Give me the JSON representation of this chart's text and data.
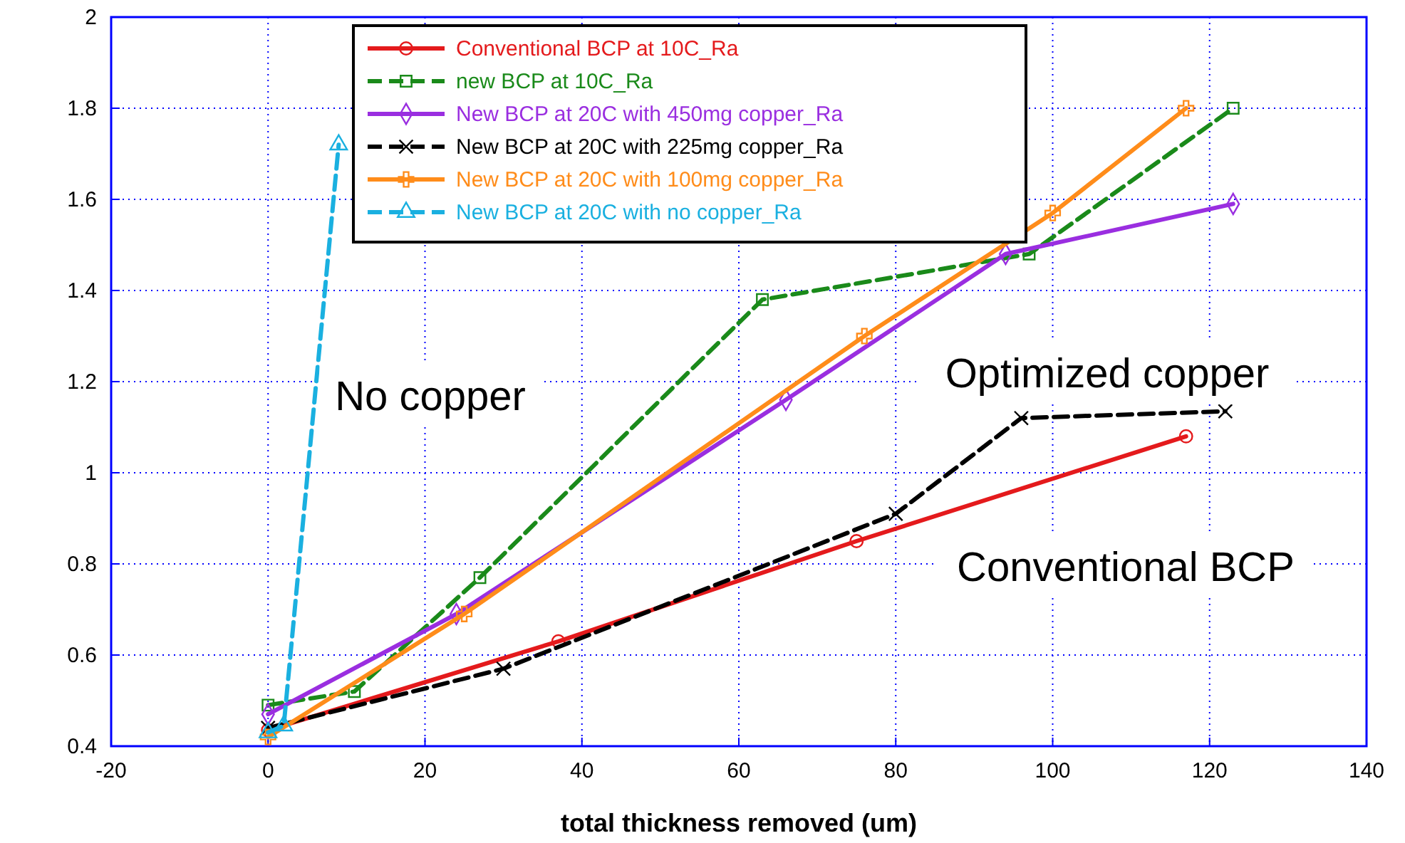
{
  "chart_data": {
    "type": "line",
    "xlabel": "total thickness removed (um)",
    "xlim": [
      -20,
      140
    ],
    "xticks": [
      -20,
      0,
      20,
      40,
      60,
      80,
      100,
      120,
      140
    ],
    "ylim": [
      0.4,
      2
    ],
    "yticks": [
      0.4,
      0.6,
      0.8,
      1,
      1.2,
      1.4,
      1.6,
      1.8,
      2
    ],
    "grid": true,
    "legend": "top",
    "series": [
      {
        "name": "Conventional BCP at 10C_Ra",
        "color": "#e41a1c",
        "marker": "circle",
        "line_style": "solid",
        "x": [
          0,
          37,
          75,
          117
        ],
        "values": [
          0.435,
          0.63,
          0.85,
          1.08
        ]
      },
      {
        "name": "new BCP at 10C_Ra",
        "color": "#1a8a1a",
        "marker": "square",
        "line_style": "dashed",
        "x": [
          0,
          11,
          27,
          63,
          97,
          123
        ],
        "values": [
          0.49,
          0.52,
          0.77,
          1.38,
          1.48,
          1.8
        ]
      },
      {
        "name": "New BCP at 20C with 450mg copper_Ra",
        "color": "#9a2ee0",
        "marker": "diamond",
        "line_style": "solid",
        "x": [
          0,
          24,
          66,
          94,
          123
        ],
        "values": [
          0.47,
          0.69,
          1.16,
          1.48,
          1.59
        ]
      },
      {
        "name": "New BCP at  20C with 225mg copper_Ra",
        "color": "#000000",
        "marker": "cross",
        "line_style": "dashed",
        "x": [
          0,
          30,
          80,
          96,
          122
        ],
        "values": [
          0.44,
          0.57,
          0.91,
          1.12,
          1.135
        ]
      },
      {
        "name": "New BCP at 20C with 100mg copper_Ra",
        "color": "#ff8c1a",
        "marker": "plus",
        "line_style": "solid",
        "x": [
          0,
          25,
          76,
          100,
          117
        ],
        "values": [
          0.42,
          0.69,
          1.3,
          1.57,
          1.8
        ]
      },
      {
        "name": "New BCP at 20C with no copper_Ra",
        "color": "#1ab0e0",
        "marker": "triangle",
        "line_style": "dashed",
        "x": [
          0,
          2,
          9
        ],
        "values": [
          0.43,
          0.445,
          1.72
        ]
      }
    ],
    "annotations": [
      "No copper",
      "Optimized copper",
      "Conventional BCP"
    ]
  }
}
